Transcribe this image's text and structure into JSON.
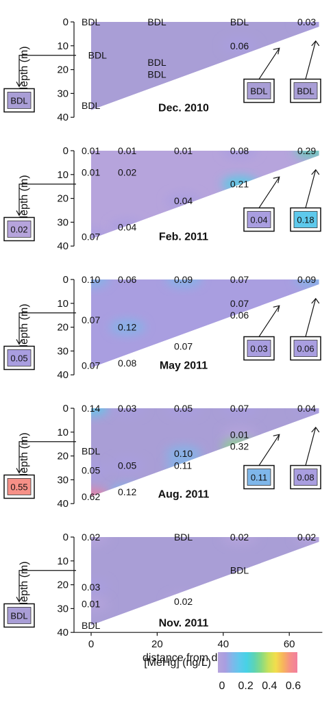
{
  "chart_data": {
    "type": "heatmap",
    "xlabel": "distance from dam (km)",
    "ylabel_panels": [
      "depth (m)",
      "depth (m)",
      "depth (m)",
      "depth (m)",
      "depth (m)"
    ],
    "xlim": [
      0,
      70
    ],
    "xticks": [
      "0",
      "20",
      "40",
      "60"
    ],
    "ylim": [
      0,
      40
    ],
    "yticks": [
      "0",
      "10",
      "20",
      "30",
      "40"
    ],
    "colorbar": {
      "label": "[MeHg] (ng/L)",
      "ticks": [
        "0",
        "0.2",
        "0.4",
        "0.6"
      ],
      "range": [
        0,
        0.6
      ],
      "stops": [
        "#b6a4dc",
        "#a99ee0",
        "#7fb7ea",
        "#5ec9ec",
        "#47d2e5",
        "#5cd3b6",
        "#88da83",
        "#c9e15a",
        "#f2de4d",
        "#f7b55c",
        "#f69087",
        "#f27f9e"
      ]
    },
    "panels": [
      {
        "title": "Dec. 2010",
        "points": [
          {
            "x": 0,
            "y": 0,
            "label": "BDL"
          },
          {
            "x": 20,
            "y": 0,
            "label": "BDL"
          },
          {
            "x": 45,
            "y": 0,
            "label": "BDL"
          },
          {
            "x": 67,
            "y": 0,
            "label": "0.03"
          },
          {
            "x": 2,
            "y": 14,
            "label": "BDL"
          },
          {
            "x": 45,
            "y": 10,
            "label": "0.06"
          },
          {
            "x": 20,
            "y": 17,
            "label": "BDL"
          },
          {
            "x": 20,
            "y": 22,
            "label": "BDL"
          },
          {
            "x": 0,
            "y": 35,
            "label": "BDL"
          }
        ],
        "inflows": [
          {
            "site": "left",
            "label": "BDL"
          },
          {
            "site": "mid",
            "label": "BDL"
          },
          {
            "site": "right",
            "label": "BDL"
          }
        ]
      },
      {
        "title": "Feb. 2011",
        "points": [
          {
            "x": 0,
            "y": 0,
            "label": "0.01"
          },
          {
            "x": 11,
            "y": 0,
            "label": "0.01"
          },
          {
            "x": 28,
            "y": 0,
            "label": "0.01"
          },
          {
            "x": 45,
            "y": 0,
            "label": "0.08"
          },
          {
            "x": 67,
            "y": 0,
            "label": "0.29"
          },
          {
            "x": 0,
            "y": 9,
            "label": "0.01"
          },
          {
            "x": 11,
            "y": 9,
            "label": "0.02"
          },
          {
            "x": 45,
            "y": 14,
            "label": "0.21"
          },
          {
            "x": 28,
            "y": 21,
            "label": "0.04"
          },
          {
            "x": 11,
            "y": 32,
            "label": "0.04"
          },
          {
            "x": 0,
            "y": 36,
            "label": "0.07"
          }
        ],
        "inflows": [
          {
            "site": "left",
            "label": "0.02"
          },
          {
            "site": "mid",
            "label": "0.04"
          },
          {
            "site": "right",
            "label": "0.18"
          }
        ]
      },
      {
        "title": "May 2011",
        "points": [
          {
            "x": 0,
            "y": 0,
            "label": "0.10"
          },
          {
            "x": 11,
            "y": 0,
            "label": "0.06"
          },
          {
            "x": 28,
            "y": 0,
            "label": "0.09"
          },
          {
            "x": 45,
            "y": 0,
            "label": "0.07"
          },
          {
            "x": 67,
            "y": 0,
            "label": "0.09"
          },
          {
            "x": 45,
            "y": 10,
            "label": "0.07"
          },
          {
            "x": 45,
            "y": 15,
            "label": "0.06"
          },
          {
            "x": 0,
            "y": 17,
            "label": "0.07"
          },
          {
            "x": 11,
            "y": 20,
            "label": "0.12"
          },
          {
            "x": 28,
            "y": 28,
            "label": "0.07"
          },
          {
            "x": 11,
            "y": 35,
            "label": "0.08"
          },
          {
            "x": 0,
            "y": 36,
            "label": "0.07"
          }
        ],
        "inflows": [
          {
            "site": "left",
            "label": "0.05"
          },
          {
            "site": "mid",
            "label": "0.03"
          },
          {
            "site": "right",
            "label": "0.06"
          }
        ]
      },
      {
        "title": "Aug. 2011",
        "points": [
          {
            "x": 0,
            "y": 0,
            "label": "0.14"
          },
          {
            "x": 11,
            "y": 0,
            "label": "0.03"
          },
          {
            "x": 28,
            "y": 0,
            "label": "0.05"
          },
          {
            "x": 45,
            "y": 0,
            "label": "0.07"
          },
          {
            "x": 67,
            "y": 0,
            "label": "0.04"
          },
          {
            "x": 45,
            "y": 11,
            "label": "0.01"
          },
          {
            "x": 45,
            "y": 16,
            "label": "0.32"
          },
          {
            "x": 0,
            "y": 18,
            "label": "BDL"
          },
          {
            "x": 28,
            "y": 19,
            "label": "0.10"
          },
          {
            "x": 0,
            "y": 26,
            "label": "0.05"
          },
          {
            "x": 11,
            "y": 24,
            "label": "0.05"
          },
          {
            "x": 28,
            "y": 24,
            "label": "0.11"
          },
          {
            "x": 11,
            "y": 35,
            "label": "0.12"
          },
          {
            "x": 0,
            "y": 37,
            "label": "0.62"
          }
        ],
        "inflows": [
          {
            "site": "left",
            "label": "0.55"
          },
          {
            "site": "mid",
            "label": "0.11"
          },
          {
            "site": "right",
            "label": "0.08"
          }
        ]
      },
      {
        "title": "Nov. 2011",
        "points": [
          {
            "x": 0,
            "y": 0,
            "label": "0.02"
          },
          {
            "x": 28,
            "y": 0,
            "label": "BDL"
          },
          {
            "x": 45,
            "y": 0,
            "label": "0.02"
          },
          {
            "x": 67,
            "y": 0,
            "label": "0.02"
          },
          {
            "x": 45,
            "y": 14,
            "label": "BDL"
          },
          {
            "x": 0,
            "y": 21,
            "label": "0.03"
          },
          {
            "x": 28,
            "y": 27,
            "label": "0.02"
          },
          {
            "x": 0,
            "y": 28,
            "label": "0.01"
          },
          {
            "x": 0,
            "y": 37,
            "label": "BDL"
          }
        ],
        "inflows": [
          {
            "site": "left",
            "label": "BDL"
          }
        ]
      }
    ]
  }
}
